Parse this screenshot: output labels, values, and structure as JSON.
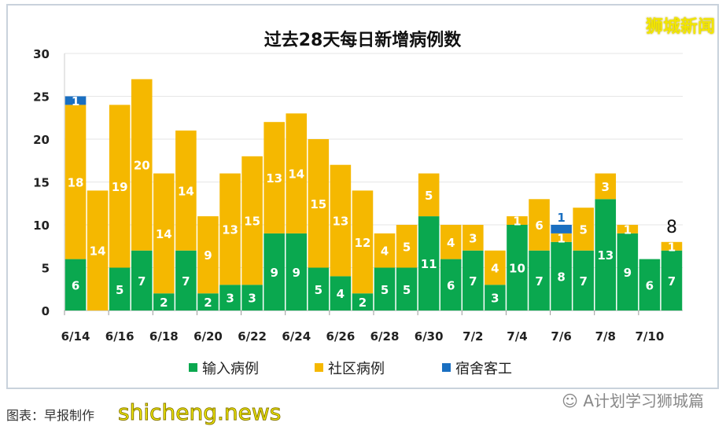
{
  "brand": "狮城新闻",
  "caption": "图表：早报制作",
  "watermark": "shicheng.news",
  "wechat_label": "A计划学习狮城篇",
  "colors": {
    "imported": "#0aa84f",
    "community": "#f5b800",
    "dorm": "#1a6fc1"
  },
  "chart_data": {
    "type": "bar",
    "stacked": true,
    "title": "过去28天每日新增病例数",
    "xlabel": "",
    "ylabel": "",
    "ylim": [
      0,
      30
    ],
    "yticks": [
      0,
      5,
      10,
      15,
      20,
      25,
      30
    ],
    "grid": true,
    "legend_position": "bottom",
    "categories": [
      "6/14",
      "6/15",
      "6/16",
      "6/17",
      "6/18",
      "6/19",
      "6/20",
      "6/21",
      "6/22",
      "6/23",
      "6/24",
      "6/25",
      "6/26",
      "6/27",
      "6/28",
      "6/29",
      "6/30",
      "7/1",
      "7/2",
      "7/3",
      "7/4",
      "7/5",
      "7/6",
      "7/7",
      "7/8",
      "7/9",
      "7/10",
      "7/11"
    ],
    "xtick_labels": [
      "6/14",
      "6/16",
      "6/18",
      "6/20",
      "6/22",
      "6/24",
      "6/26",
      "6/28",
      "6/30",
      "7/2",
      "7/4",
      "7/6",
      "7/8",
      "7/10"
    ],
    "series": [
      {
        "name": "输入病例",
        "key": "imported",
        "values": [
          6,
          0,
          5,
          7,
          2,
          7,
          2,
          3,
          3,
          9,
          9,
          5,
          4,
          2,
          5,
          5,
          11,
          6,
          7,
          3,
          10,
          7,
          8,
          7,
          13,
          9,
          6,
          7
        ]
      },
      {
        "name": "社区病例",
        "key": "community",
        "values": [
          18,
          14,
          19,
          20,
          14,
          14,
          9,
          13,
          15,
          13,
          14,
          15,
          13,
          12,
          4,
          5,
          5,
          4,
          3,
          4,
          1,
          6,
          1,
          5,
          3,
          1,
          0,
          1
        ]
      },
      {
        "name": "宿舍客工",
        "key": "dorm",
        "values": [
          1,
          0,
          0,
          0,
          0,
          0,
          0,
          0,
          0,
          0,
          0,
          0,
          0,
          0,
          0,
          0,
          0,
          0,
          0,
          0,
          0,
          0,
          1,
          0,
          0,
          0,
          0,
          0
        ]
      }
    ],
    "annotations": [
      {
        "category": "7/11",
        "text": "8"
      }
    ]
  }
}
